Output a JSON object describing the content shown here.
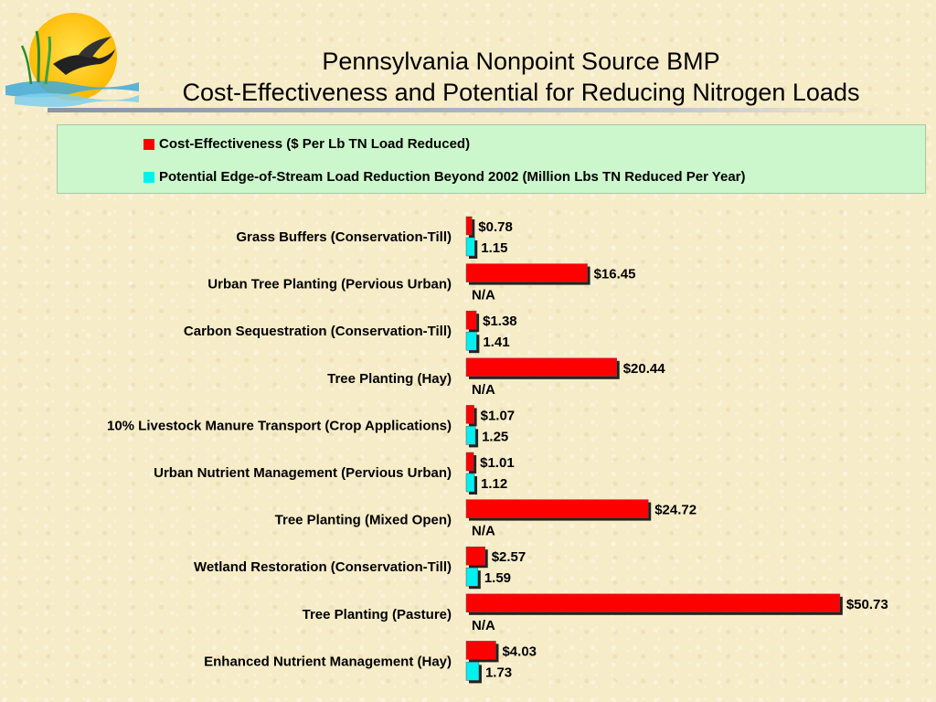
{
  "title": {
    "line1": "Pennsylvania Nonpoint Source BMP",
    "line2": "Cost-Effectiveness and Potential for Reducing Nitrogen Loads"
  },
  "logo": {
    "icon": "sun-bird-logo-icon"
  },
  "colors": {
    "cost": "#ff0000",
    "potential": "#00f0f0",
    "legend_bg": "#ccf7cc"
  },
  "chart_data": {
    "type": "bar",
    "orientation": "horizontal",
    "legend": {
      "position": "top"
    },
    "grid": false,
    "categories": [
      "Grass Buffers (Conservation-Till)",
      "Urban Tree Planting (Pervious Urban)",
      "Carbon Sequestration (Conservation-Till)",
      "Tree Planting (Hay)",
      "10% Livestock Manure Transport (Crop Applications)",
      "Urban Nutrient Management (Pervious Urban)",
      "Tree Planting (Mixed Open)",
      "Wetland Restoration (Conservation-Till)",
      "Tree Planting (Pasture)",
      "Enhanced Nutrient Management (Hay)"
    ],
    "series": [
      {
        "name": "Cost-Effectiveness ($ Per Lb TN Load Reduced)",
        "values": [
          0.78,
          16.45,
          1.38,
          20.44,
          1.07,
          1.01,
          24.72,
          2.57,
          50.73,
          4.03
        ],
        "labels": [
          "$0.78",
          "$16.45",
          "$1.38",
          "$20.44",
          "$1.07",
          "$1.01",
          "$24.72",
          "$2.57",
          "$50.73",
          "$4.03"
        ]
      },
      {
        "name": "Potential Edge-of-Stream Load Reduction Beyond 2002 (Million Lbs TN Reduced Per Year)",
        "values": [
          1.15,
          null,
          1.41,
          null,
          1.25,
          1.12,
          null,
          1.59,
          null,
          1.73
        ],
        "labels": [
          "1.15",
          "N/A",
          "1.41",
          "N/A",
          "1.25",
          "1.12",
          "N/A",
          "1.59",
          "N/A",
          "1.73"
        ]
      }
    ],
    "xlim": [
      0,
      51
    ]
  }
}
